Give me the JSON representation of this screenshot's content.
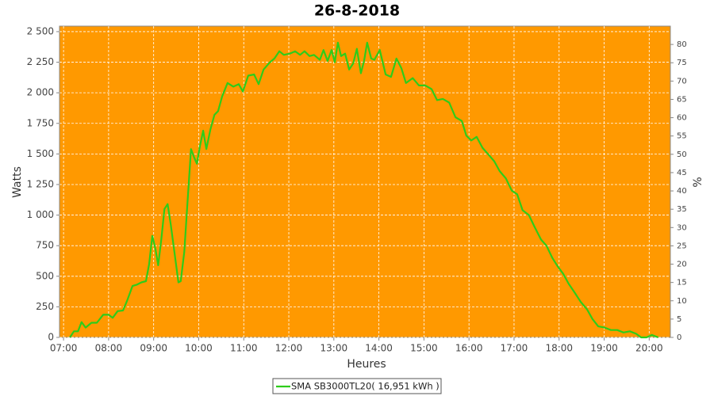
{
  "chart_data": {
    "type": "line",
    "title": "26-8-2018",
    "x_label": "Heures",
    "y_label": "Watts",
    "y2_label": "%",
    "background": "#ff9900",
    "grid": true,
    "legend": "bottom",
    "xlim": [
      6.91,
      20.47
    ],
    "xticks": [
      {
        "value": 7,
        "label": "07:00"
      },
      {
        "value": 8,
        "label": "08:00"
      },
      {
        "value": 9,
        "label": "09:00"
      },
      {
        "value": 10,
        "label": "10:00"
      },
      {
        "value": 11,
        "label": "11:00"
      },
      {
        "value": 12,
        "label": "12:00"
      },
      {
        "value": 13,
        "label": "13:00"
      },
      {
        "value": 14,
        "label": "14:00"
      },
      {
        "value": 15,
        "label": "15:00"
      },
      {
        "value": 16,
        "label": "16:00"
      },
      {
        "value": 17,
        "label": "17:00"
      },
      {
        "value": 18,
        "label": "18:00"
      },
      {
        "value": 19,
        "label": "19:00"
      },
      {
        "value": 20,
        "label": "20:00"
      }
    ],
    "ylim": [
      0,
      2545
    ],
    "yticks": [
      0,
      250,
      500,
      750,
      {
        "value": 1000,
        "label": "1 000"
      },
      {
        "value": 1250,
        "label": "1 250"
      },
      {
        "value": 1500,
        "label": "1 500"
      },
      {
        "value": 1750,
        "label": "1 750"
      },
      {
        "value": 2000,
        "label": "2 000"
      },
      {
        "value": 2250,
        "label": "2 250"
      },
      {
        "value": 2500,
        "label": "2 500"
      }
    ],
    "y2lim": [
      0,
      85
    ],
    "y2ticks": [
      0,
      5,
      10,
      15,
      20,
      25,
      30,
      35,
      40,
      45,
      50,
      55,
      60,
      65,
      70,
      75,
      80
    ],
    "x": [
      7.14,
      7.23,
      7.32,
      7.4,
      7.49,
      7.62,
      7.74,
      7.88,
      8.0,
      8.09,
      8.2,
      8.32,
      8.41,
      8.53,
      8.62,
      8.73,
      8.83,
      8.9,
      8.97,
      9.04,
      9.1,
      9.17,
      9.24,
      9.31,
      9.38,
      9.46,
      9.55,
      9.6,
      9.68,
      9.75,
      9.83,
      9.9,
      9.96,
      10.03,
      10.1,
      10.17,
      10.26,
      10.35,
      10.43,
      10.52,
      10.64,
      10.77,
      10.89,
      10.98,
      11.1,
      11.23,
      11.33,
      11.44,
      11.58,
      11.68,
      11.79,
      11.89,
      12.02,
      12.14,
      12.25,
      12.35,
      12.46,
      12.56,
      12.69,
      12.77,
      12.86,
      12.95,
      13.02,
      13.09,
      13.16,
      13.25,
      13.34,
      13.43,
      13.51,
      13.6,
      13.67,
      13.74,
      13.83,
      13.9,
      14.02,
      14.15,
      14.27,
      14.39,
      14.5,
      14.6,
      14.75,
      14.89,
      15.03,
      15.17,
      15.29,
      15.42,
      15.56,
      15.7,
      15.84,
      15.94,
      16.05,
      16.17,
      16.3,
      16.42,
      16.56,
      16.68,
      16.82,
      16.95,
      17.07,
      17.19,
      17.33,
      17.46,
      17.6,
      17.72,
      17.85,
      17.97,
      18.09,
      18.21,
      18.34,
      18.48,
      18.62,
      18.74,
      18.87,
      19.01,
      19.15,
      19.29,
      19.43,
      19.57,
      19.71,
      19.82,
      19.94,
      20.06,
      20.2
    ],
    "series": [
      {
        "name": "SMA SB3000TL20( 16,951 kWh )",
        "color": "#2ecc1a",
        "values": [
          0,
          50,
          50,
          125,
          80,
          120,
          120,
          185,
          185,
          160,
          215,
          220,
          300,
          420,
          430,
          450,
          460,
          600,
          830,
          720,
          590,
          800,
          1050,
          1090,
          920,
          700,
          450,
          460,
          700,
          1100,
          1540,
          1470,
          1420,
          1570,
          1690,
          1540,
          1700,
          1820,
          1850,
          1970,
          2080,
          2050,
          2070,
          2010,
          2140,
          2150,
          2070,
          2190,
          2250,
          2280,
          2340,
          2310,
          2320,
          2340,
          2310,
          2340,
          2300,
          2310,
          2270,
          2350,
          2260,
          2350,
          2250,
          2410,
          2300,
          2320,
          2190,
          2240,
          2360,
          2160,
          2260,
          2410,
          2280,
          2270,
          2350,
          2150,
          2130,
          2280,
          2200,
          2080,
          2120,
          2060,
          2060,
          2030,
          1940,
          1950,
          1920,
          1800,
          1770,
          1650,
          1610,
          1640,
          1550,
          1500,
          1440,
          1360,
          1300,
          1200,
          1170,
          1040,
          1000,
          900,
          800,
          750,
          650,
          580,
          520,
          440,
          370,
          290,
          230,
          150,
          90,
          80,
          60,
          60,
          40,
          50,
          30,
          0,
          0,
          20,
          0
        ]
      }
    ]
  }
}
